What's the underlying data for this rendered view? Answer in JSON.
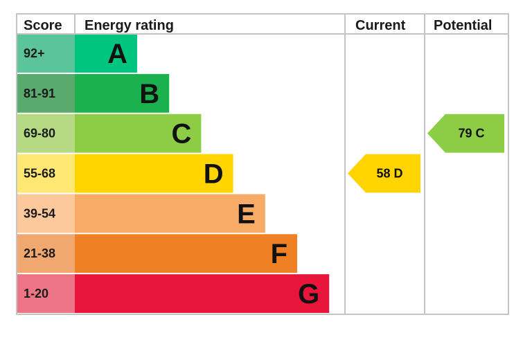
{
  "chart_data": {
    "type": "energy-rating",
    "columns": {
      "score": "Score",
      "rating": "Energy rating",
      "current": "Current",
      "potential": "Potential"
    },
    "bands": [
      {
        "score": "92+",
        "letter": "A",
        "score_color": "#5cc49a",
        "bar_color": "#00c47f"
      },
      {
        "score": "81-91",
        "letter": "B",
        "score_color": "#5aaa6e",
        "bar_color": "#1bb14f"
      },
      {
        "score": "69-80",
        "letter": "C",
        "score_color": "#b6da84",
        "bar_color": "#8dcd46"
      },
      {
        "score": "55-68",
        "letter": "D",
        "score_color": "#ffe774",
        "bar_color": "#ffd400"
      },
      {
        "score": "39-54",
        "letter": "E",
        "score_color": "#fcc89c",
        "bar_color": "#f8ab66"
      },
      {
        "score": "21-38",
        "letter": "F",
        "score_color": "#f0a870",
        "bar_color": "#ef8023"
      },
      {
        "score": "1-20",
        "letter": "G",
        "score_color": "#ec7686",
        "bar_color": "#e9153b"
      }
    ],
    "current": {
      "value": 58,
      "letter": "D",
      "label": "58  D",
      "color": "#ffd400"
    },
    "potential": {
      "value": 79,
      "letter": "C",
      "label": "79  C",
      "color": "#8dcd46"
    }
  }
}
